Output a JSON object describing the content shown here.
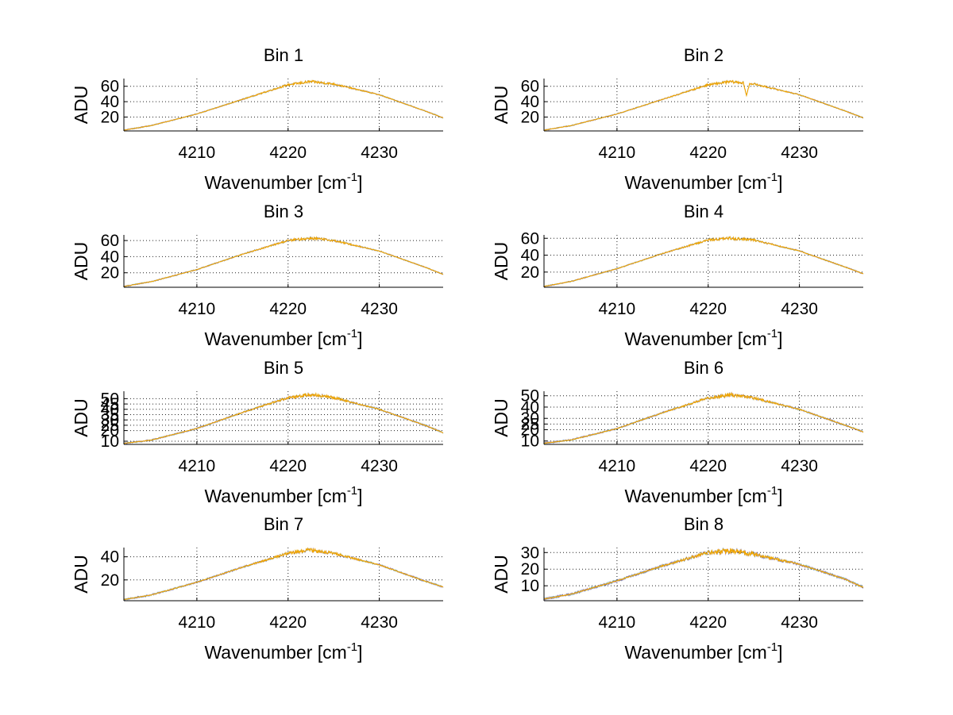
{
  "chart_data": [
    {
      "type": "line",
      "title": "Bin 1",
      "xlabel": "Wavenumber [cm",
      "xlabel_sup": "-1",
      "xlabel_end": "]",
      "ylabel": "ADU",
      "xlim": [
        4202,
        4237
      ],
      "ylim": [
        2,
        70
      ],
      "xticks": [
        4210,
        4220,
        4230
      ],
      "yticks": [
        20,
        40,
        60
      ],
      "grid": true,
      "peak_x": 4222.5,
      "x": [
        4202,
        4205,
        4210,
        4215,
        4220,
        4222.5,
        4225,
        4230,
        4235,
        4237
      ],
      "y": [
        3,
        9,
        24,
        43,
        62,
        66,
        63,
        49,
        28,
        19
      ]
    },
    {
      "type": "line",
      "title": "Bin 2",
      "xlabel": "Wavenumber [cm",
      "xlabel_sup": "-1",
      "xlabel_end": "]",
      "ylabel": "ADU",
      "xlim": [
        4202,
        4237
      ],
      "ylim": [
        2,
        70
      ],
      "xticks": [
        4210,
        4220,
        4230
      ],
      "yticks": [
        20,
        40,
        60
      ],
      "grid": true,
      "peak_x": 4222.5,
      "x": [
        4202,
        4205,
        4210,
        4215,
        4220,
        4222.5,
        4225,
        4230,
        4235,
        4237
      ],
      "y": [
        3,
        9,
        24,
        43,
        62,
        66,
        63,
        49,
        28,
        19
      ],
      "dip": {
        "x": 4224.2,
        "y": 48
      }
    },
    {
      "type": "line",
      "title": "Bin 3",
      "xlabel": "Wavenumber [cm",
      "xlabel_sup": "-1",
      "xlabel_end": "]",
      "ylabel": "ADU",
      "xlim": [
        4202,
        4237
      ],
      "ylim": [
        2,
        67
      ],
      "xticks": [
        4210,
        4220,
        4230
      ],
      "yticks": [
        20,
        40,
        60
      ],
      "grid": true,
      "peak_x": 4222.5,
      "x": [
        4202,
        4205,
        4210,
        4215,
        4220,
        4222.5,
        4225,
        4230,
        4235,
        4237
      ],
      "y": [
        3,
        9,
        24,
        43,
        60,
        63,
        60,
        47,
        27,
        18
      ]
    },
    {
      "type": "line",
      "title": "Bin 4",
      "xlabel": "Wavenumber [cm",
      "xlabel_sup": "-1",
      "xlabel_end": "]",
      "ylabel": "ADU",
      "xlim": [
        4202,
        4237
      ],
      "ylim": [
        2,
        64
      ],
      "xticks": [
        4210,
        4220,
        4230
      ],
      "yticks": [
        20,
        40,
        60
      ],
      "grid": true,
      "peak_x": 4222.5,
      "x": [
        4202,
        4205,
        4210,
        4215,
        4220,
        4222.5,
        4225,
        4230,
        4235,
        4237
      ],
      "y": [
        3,
        9,
        24,
        42,
        58,
        60,
        58,
        45,
        26,
        18
      ]
    },
    {
      "type": "line",
      "title": "Bin 5",
      "xlabel": "Wavenumber [cm",
      "xlabel_sup": "-1",
      "xlabel_end": "]",
      "ylabel": "ADU",
      "xlim": [
        4202,
        4237
      ],
      "ylim": [
        7,
        57
      ],
      "xticks": [
        4210,
        4220,
        4230
      ],
      "yticks": [
        10,
        20,
        25,
        30,
        35,
        40,
        45,
        50
      ],
      "grid": true,
      "peak_x": 4222.5,
      "x": [
        4202,
        4205,
        4210,
        4215,
        4220,
        4222.5,
        4225,
        4230,
        4235,
        4237
      ],
      "y": [
        8,
        11,
        22,
        37,
        51,
        54,
        51,
        40,
        25,
        18
      ]
    },
    {
      "type": "line",
      "title": "Bin 6",
      "xlabel": "Wavenumber [cm",
      "xlabel_sup": "-1",
      "xlabel_end": "]",
      "ylabel": "ADU",
      "xlim": [
        4202,
        4237
      ],
      "ylim": [
        7,
        54
      ],
      "xticks": [
        4210,
        4220,
        4230
      ],
      "yticks": [
        10,
        20,
        25,
        30,
        40,
        50
      ],
      "grid": true,
      "peak_x": 4222.5,
      "x": [
        4202,
        4205,
        4210,
        4215,
        4220,
        4222.5,
        4225,
        4230,
        4235,
        4237
      ],
      "y": [
        8,
        11,
        21,
        35,
        48,
        51,
        48,
        38,
        24,
        18
      ]
    },
    {
      "type": "line",
      "title": "Bin 7",
      "xlabel": "Wavenumber [cm",
      "xlabel_sup": "-1",
      "xlabel_end": "]",
      "ylabel": "ADU",
      "xlim": [
        4202,
        4237
      ],
      "ylim": [
        2,
        48
      ],
      "xticks": [
        4210,
        4220,
        4230
      ],
      "yticks": [
        20,
        40
      ],
      "grid": true,
      "peak_x": 4222.5,
      "x": [
        4202,
        4205,
        4210,
        4215,
        4220,
        4222.5,
        4225,
        4230,
        4235,
        4237
      ],
      "y": [
        3,
        7,
        18,
        31,
        43,
        46,
        43,
        33,
        19,
        14
      ]
    },
    {
      "type": "line",
      "title": "Bin 8",
      "xlabel": "Wavenumber [cm",
      "xlabel_sup": "-1",
      "xlabel_end": "]",
      "ylabel": "ADU",
      "xlim": [
        4202,
        4237
      ],
      "ylim": [
        1,
        33
      ],
      "xticks": [
        4210,
        4220,
        4230
      ],
      "yticks": [
        10,
        20,
        30
      ],
      "grid": true,
      "peak_x": 4222.5,
      "x": [
        4202,
        4205,
        4210,
        4215,
        4220,
        4222.5,
        4225,
        4230,
        4235,
        4237
      ],
      "y": [
        2,
        5,
        13,
        22,
        30,
        31,
        29,
        23,
        14,
        9
      ]
    }
  ],
  "colors": {
    "line": "#f0a500",
    "noise": [
      "#0b2f8f",
      "#2aa198",
      "#7a2fa0"
    ],
    "grid": "#222222",
    "axes": "#000000",
    "background": "#ffffff"
  }
}
